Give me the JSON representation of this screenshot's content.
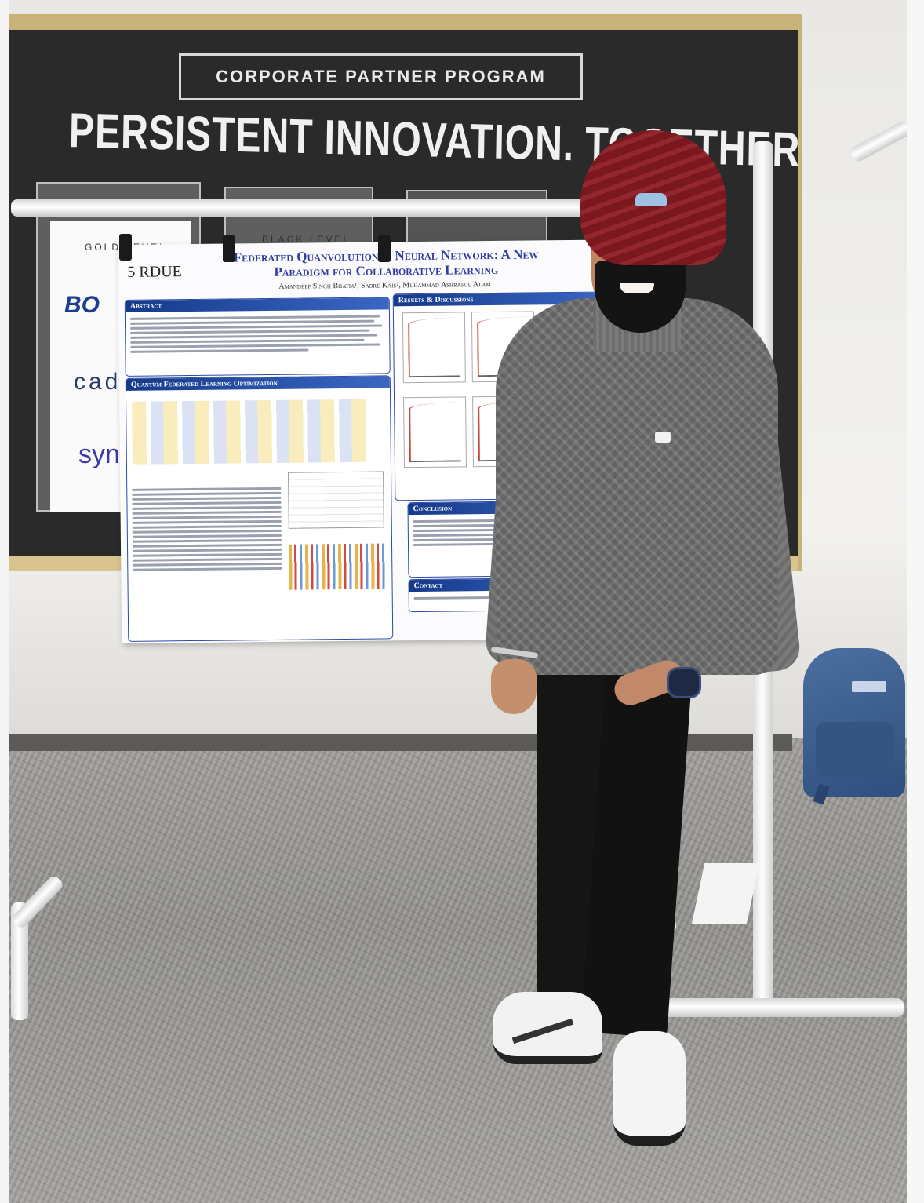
{
  "banner": {
    "program_label": "CORPORATE PARTNER PROGRAM",
    "headline": "PERSISTENT INNOVATION. TOGETHER"
  },
  "plaques": {
    "gold_level": "GOLD LEVEL",
    "black_level": "BLACK LEVEL",
    "logos": [
      "BO",
      "cad",
      "syno"
    ]
  },
  "poster": {
    "title_line1": "Federated Quanvolutional Neural Network: A New",
    "title_line2": "Paradigm for Collaborative Learning",
    "authors": "Amandeep Singh Bhatia¹, Sabre Kais², Muhammad Ashraful Alam",
    "logo_fragment": "5  RDUE",
    "sections": {
      "abstract": "Abstract",
      "qfl": "Quantum Federated Learning Optimization",
      "results": "Results & Discussions",
      "conclusion": "Conclusion",
      "contact": "Contact"
    }
  },
  "colors": {
    "turban": "#8c1a22",
    "sweater": "#6f6f6f",
    "poster_accent": "#2f3e9e",
    "banner_gold": "#c9b27a",
    "backpack": "#3a5c8e"
  }
}
